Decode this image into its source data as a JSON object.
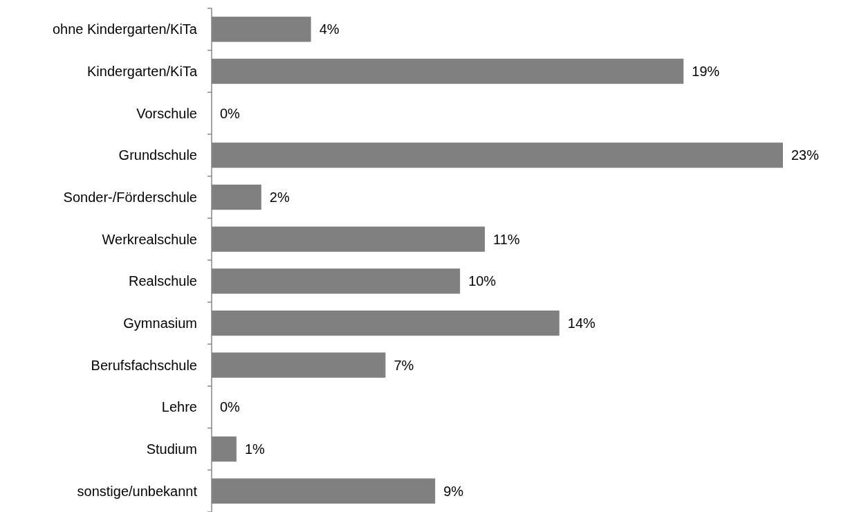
{
  "chart_data": {
    "type": "bar",
    "orientation": "horizontal",
    "categories": [
      "ohne Kindergarten/KiTa",
      "Kindergarten/KiTa",
      "Vorschule",
      "Grundschule",
      "Sonder-/Förderschule",
      "Werkrealschule",
      "Realschule",
      "Gymnasium",
      "Berufsfachschule",
      "Lehre",
      "Studium",
      "sonstige/unbekannt"
    ],
    "values": [
      4,
      19,
      0,
      23,
      2,
      11,
      10,
      14,
      7,
      0,
      1,
      9
    ],
    "value_labels": [
      "4%",
      "19%",
      "0%",
      "23%",
      "2%",
      "11%",
      "10%",
      "14%",
      "7%",
      "0%",
      "1%",
      "9%"
    ],
    "color": "#808080"
  }
}
